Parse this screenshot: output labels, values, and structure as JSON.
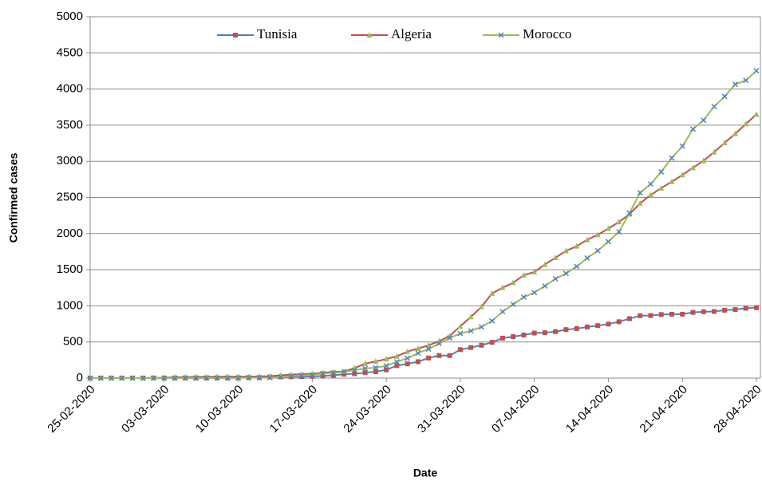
{
  "chart_data": {
    "type": "line",
    "x_label": "Date",
    "y_label": "Confirmed cases",
    "categories": [
      "25-02-2020",
      null,
      null,
      null,
      null,
      null,
      null,
      "03-03-2020",
      null,
      null,
      null,
      null,
      null,
      null,
      "10-03-2020",
      null,
      null,
      null,
      null,
      null,
      null,
      "17-03-2020",
      null,
      null,
      null,
      null,
      null,
      null,
      "24-03-2020",
      null,
      null,
      null,
      null,
      null,
      null,
      "31-03-2020",
      null,
      null,
      null,
      null,
      null,
      null,
      "07-04-2020",
      null,
      null,
      null,
      null,
      null,
      null,
      "14-04-2020",
      null,
      null,
      null,
      null,
      null,
      null,
      "21-04-2020",
      null,
      null,
      null,
      null,
      null,
      null,
      "28-04-2020"
    ],
    "series": [
      {
        "name": "Tunisia",
        "color": "#4f81bd",
        "marker_color": "#c0504d",
        "marker": "square",
        "values": [
          0,
          0,
          0,
          0,
          0,
          0,
          1,
          1,
          1,
          1,
          1,
          1,
          2,
          2,
          5,
          7,
          7,
          16,
          18,
          18,
          20,
          24,
          29,
          39,
          54,
          60,
          75,
          89,
          114,
          173,
          197,
          227,
          278,
          312,
          312,
          394,
          423,
          455,
          495,
          553,
          574,
          596,
          623,
          628,
          643,
          671,
          685,
          707,
          726,
          747,
          780,
          822,
          864,
          866,
          879,
          884,
          884,
          909,
          918,
          922,
          939,
          949,
          967,
          975
        ]
      },
      {
        "name": "Algeria",
        "color": "#c0504d",
        "marker_color": "#9bbb59",
        "marker": "triangle",
        "values": [
          1,
          1,
          1,
          1,
          1,
          1,
          3,
          5,
          12,
          12,
          17,
          17,
          19,
          20,
          20,
          20,
          24,
          26,
          37,
          48,
          54,
          60,
          74,
          87,
          90,
          139,
          201,
          230,
          264,
          302,
          367,
          409,
          454,
          511,
          584,
          716,
          847,
          986,
          1171,
          1251,
          1320,
          1423,
          1468,
          1572,
          1666,
          1761,
          1825,
          1914,
          1983,
          2070,
          2160,
          2268,
          2418,
          2534,
          2629,
          2718,
          2811,
          2910,
          3007,
          3127,
          3256,
          3382,
          3517,
          3649
        ]
      },
      {
        "name": "Morocco",
        "color": "#9bbb59",
        "marker_color": "#4f81bd",
        "marker": "x",
        "values": [
          0,
          0,
          0,
          0,
          0,
          0,
          1,
          1,
          1,
          2,
          2,
          2,
          2,
          2,
          2,
          5,
          6,
          7,
          17,
          28,
          37,
          44,
          63,
          71,
          86,
          109,
          134,
          143,
          170,
          225,
          275,
          345,
          402,
          479,
          556,
          617,
          654,
          708,
          791,
          919,
          1021,
          1120,
          1184,
          1275,
          1374,
          1448,
          1545,
          1661,
          1763,
          1888,
          2024,
          2283,
          2564,
          2685,
          2855,
          3046,
          3209,
          3446,
          3568,
          3758,
          3897,
          4065,
          4120,
          4252
        ]
      }
    ],
    "ylim": [
      0,
      5000
    ],
    "yticks": [
      0,
      500,
      1000,
      1500,
      2000,
      2500,
      3000,
      3500,
      4000,
      4500,
      5000
    ],
    "grid": true,
    "legend": "top"
  }
}
